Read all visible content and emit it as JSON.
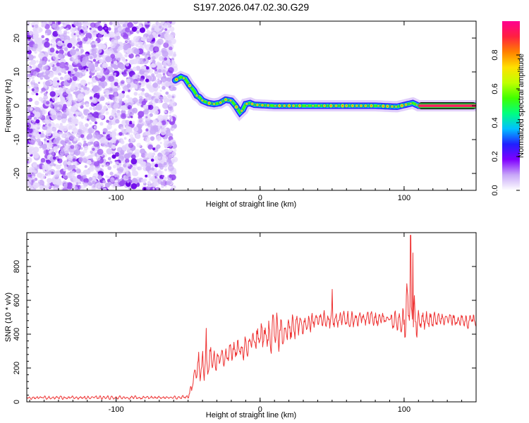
{
  "title": "S197.2026.047.02.30.G29",
  "chart_data": [
    {
      "type": "heatmap",
      "name": "spectrogram",
      "xlabel": "Height of straight line (km)",
      "ylabel": "Frequency (Hz)",
      "xlim": [
        -162,
        150
      ],
      "ylim": [
        -25,
        25
      ],
      "xticks": [
        -100,
        0,
        100
      ],
      "yticks": [
        -20,
        -10,
        0,
        10,
        20
      ],
      "noise_region_x": [
        -162,
        -59
      ],
      "ridge": {
        "x": [
          -59,
          -55,
          -52,
          -49,
          -46,
          -44,
          -42,
          -40,
          -36,
          -32,
          -28,
          -24,
          -20,
          -17,
          -14,
          -12,
          -10,
          -7,
          -4,
          0,
          10,
          20,
          40,
          60,
          80,
          95,
          100,
          103,
          106,
          110,
          130,
          150
        ],
        "hz": [
          7.5,
          8.5,
          8.0,
          6.0,
          4.5,
          3.0,
          2.5,
          1.5,
          0.8,
          0.5,
          0.8,
          1.8,
          1.5,
          0.0,
          -2.0,
          -1.2,
          0.5,
          0.8,
          0.3,
          0.2,
          0.0,
          0.0,
          0.0,
          0.0,
          0.0,
          -0.3,
          0.2,
          0.5,
          0.8,
          0.0,
          0.0,
          0.0
        ]
      },
      "colorbar": {
        "label": "Normalized spectral amplitude",
        "range": [
          0,
          1
        ],
        "ticks": [
          "0.0",
          "0.2",
          "0.4",
          "0.6",
          "0.8"
        ],
        "colors": [
          "#ffffff",
          "#c8a8f8",
          "#8000ff",
          "#2020ff",
          "#00c0ff",
          "#00ff80",
          "#40ff00",
          "#c0ff00",
          "#ffe000",
          "#ff8000",
          "#ff2040",
          "#ff0090"
        ]
      }
    },
    {
      "type": "line",
      "name": "snr",
      "xlabel": "Height of straight line (km)",
      "ylabel": "SNR (10 * v/v)",
      "xlim": [
        -162,
        150
      ],
      "ylim": [
        0,
        1000
      ],
      "xticks": [
        -100,
        0,
        100
      ],
      "yticks": [
        0,
        200,
        400,
        600,
        800
      ],
      "series_color": "#ee3333",
      "envelope": {
        "x": [
          -162,
          -60,
          -50,
          -46,
          -43,
          -40,
          -37,
          -30,
          -20,
          -10,
          -5,
          0,
          10,
          20,
          30,
          40,
          50,
          60,
          70,
          80,
          90,
          97,
          100,
          103,
          106,
          110,
          120,
          130,
          140,
          150
        ],
        "mean": [
          25,
          25,
          30,
          120,
          220,
          200,
          260,
          250,
          290,
          320,
          350,
          380,
          400,
          430,
          460,
          480,
          490,
          480,
          490,
          490,
          490,
          470,
          520,
          560,
          520,
          480,
          480,
          490,
          480,
          480
        ],
        "amp": [
          12,
          12,
          15,
          60,
          110,
          150,
          140,
          80,
          80,
          90,
          110,
          130,
          140,
          110,
          70,
          60,
          80,
          70,
          60,
          60,
          60,
          80,
          180,
          260,
          200,
          90,
          60,
          50,
          50,
          50
        ]
      },
      "spikes": [
        {
          "x": -37.5,
          "y": 435
        },
        {
          "x": 50,
          "y": 665
        },
        {
          "x": 104.5,
          "y": 985
        },
        {
          "x": 106,
          "y": 880
        }
      ]
    }
  ]
}
